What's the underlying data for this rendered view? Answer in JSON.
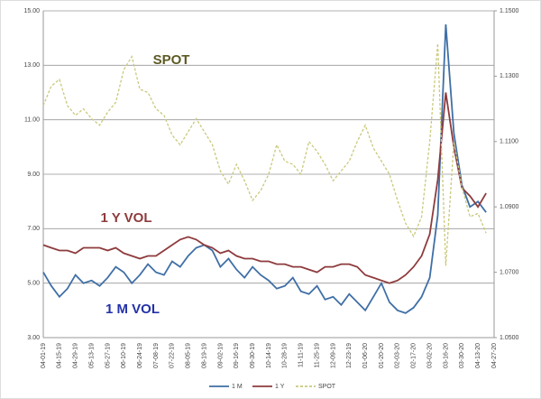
{
  "chart_data": {
    "type": "line",
    "categories": [
      "04-01-19",
      null,
      "04-15-19",
      null,
      "04-29-19",
      null,
      "05-13-19",
      null,
      "05-27-19",
      null,
      "06-10-19",
      null,
      "06-24-19",
      null,
      "07-08-19",
      null,
      "07-22-19",
      null,
      "08-05-19",
      null,
      "08-19-19",
      null,
      "09-02-19",
      null,
      "09-16-19",
      null,
      "09-30-19",
      null,
      "10-14-19",
      null,
      "10-28-19",
      null,
      "11-11-19",
      null,
      "11-25-19",
      null,
      "12-09-19",
      null,
      "12-23-19",
      null,
      "01-06-20",
      null,
      "01-20-20",
      null,
      "02-03-20",
      null,
      "02-17-20",
      null,
      "03-02-20",
      null,
      "03-16-20",
      null,
      "03-30-20",
      null,
      "04-13-20",
      null,
      "04-27-20"
    ],
    "series": [
      {
        "name": "1 M",
        "color": "#3f6fa6",
        "dashed": false,
        "values": [
          5.4,
          4.9,
          4.5,
          4.8,
          5.3,
          5.0,
          5.1,
          4.9,
          5.2,
          5.6,
          5.4,
          5.0,
          5.3,
          5.7,
          5.4,
          5.3,
          5.8,
          5.6,
          6.0,
          6.3,
          6.4,
          6.2,
          5.6,
          5.9,
          5.5,
          5.2,
          5.6,
          5.3,
          5.1,
          4.8,
          4.9,
          5.2,
          4.7,
          4.6,
          4.9,
          4.4,
          4.5,
          4.2,
          4.6,
          4.3,
          4.0,
          4.5,
          5.0,
          4.3,
          4.0,
          3.9,
          4.1,
          4.5,
          5.2,
          7.5,
          14.5,
          10.5,
          8.6,
          7.8,
          8.0,
          7.6,
          null
        ]
      },
      {
        "name": "1 Y",
        "color": "#8e3b3d",
        "dashed": false,
        "values": [
          6.4,
          6.3,
          6.2,
          6.2,
          6.1,
          6.3,
          6.3,
          6.3,
          6.2,
          6.3,
          6.1,
          6.0,
          5.9,
          6.0,
          6.0,
          6.2,
          6.4,
          6.6,
          6.7,
          6.6,
          6.4,
          6.3,
          6.1,
          6.2,
          6.0,
          5.9,
          5.9,
          5.8,
          5.8,
          5.7,
          5.7,
          5.6,
          5.6,
          5.5,
          5.4,
          5.6,
          5.6,
          5.7,
          5.7,
          5.6,
          5.3,
          5.2,
          5.1,
          5.0,
          5.1,
          5.3,
          5.6,
          6.0,
          6.8,
          8.8,
          12.0,
          10.0,
          8.5,
          8.2,
          7.8,
          8.3,
          null
        ]
      },
      {
        "name": "SPOT",
        "color": "#c9c97c",
        "dashed": true,
        "axis": "y2",
        "values": [
          1.121,
          1.127,
          1.129,
          1.121,
          1.118,
          1.12,
          1.117,
          1.115,
          1.119,
          1.122,
          1.132,
          1.136,
          1.126,
          1.125,
          1.12,
          1.118,
          1.112,
          1.109,
          1.113,
          1.117,
          1.113,
          1.109,
          1.101,
          1.097,
          1.103,
          1.098,
          1.092,
          1.095,
          1.1,
          1.109,
          1.104,
          1.103,
          1.1,
          1.11,
          1.107,
          1.103,
          1.098,
          1.101,
          1.104,
          1.11,
          1.115,
          1.108,
          1.104,
          1.1,
          1.092,
          1.085,
          1.081,
          1.087,
          1.11,
          1.14,
          1.072,
          1.11,
          1.096,
          1.087,
          1.088,
          1.082,
          null
        ]
      }
    ],
    "ylim": [
      3,
      15
    ],
    "yticks": [
      {
        "value": 3,
        "label": "3.00"
      },
      {
        "value": 5,
        "label": "5.00"
      },
      {
        "value": 7,
        "label": "7.00"
      },
      {
        "value": 9,
        "label": "9.00"
      },
      {
        "value": 11,
        "label": "11.00"
      },
      {
        "value": 13,
        "label": "13.00"
      },
      {
        "value": 15,
        "label": "15.00"
      }
    ],
    "y2lim": [
      1.05,
      1.15
    ],
    "y2ticks": [
      {
        "value": 1.05,
        "label": "1.0500"
      },
      {
        "value": 1.07,
        "label": "1.0700"
      },
      {
        "value": 1.09,
        "label": "1.0900"
      },
      {
        "value": 1.11,
        "label": "1.1100"
      },
      {
        "value": 1.13,
        "label": "1.1300"
      },
      {
        "value": 1.15,
        "label": "1.1500"
      }
    ],
    "grid": true,
    "annotations": [
      "SPOT",
      "1 Y VOL",
      "1 M VOL"
    ]
  }
}
